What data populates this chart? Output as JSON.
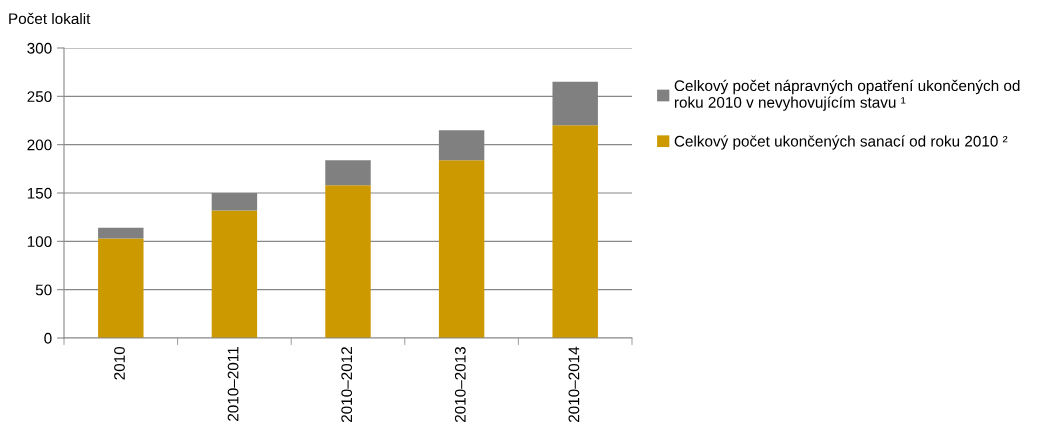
{
  "chart_data": {
    "type": "bar",
    "ylabel": "Počet lokalit",
    "categories": [
      "2010",
      "2010–2011",
      "2010–2012",
      "2010–2013",
      "2010–2014"
    ],
    "stacked": true,
    "series": [
      {
        "name": "Celkový počet ukončených sanací od roku 2010 ²",
        "color": "#cc9900",
        "values": [
          103,
          132,
          158,
          184,
          220
        ]
      },
      {
        "name": "Celkový počet nápravných opatření ukončených od\nroku 2010 v nevyhovujícím stavu ¹",
        "color": "#808080",
        "values": [
          11,
          18,
          26,
          31,
          45
        ]
      }
    ],
    "ylim": [
      0,
      300
    ],
    "yticks": [
      0,
      50,
      100,
      150,
      200,
      250,
      300
    ],
    "grid": "y",
    "legend": "right"
  }
}
